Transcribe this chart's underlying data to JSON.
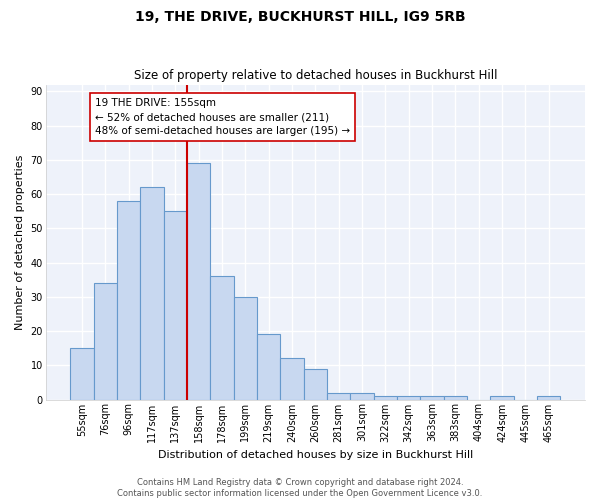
{
  "title": "19, THE DRIVE, BUCKHURST HILL, IG9 5RB",
  "subtitle": "Size of property relative to detached houses in Buckhurst Hill",
  "xlabel": "Distribution of detached houses by size in Buckhurst Hill",
  "ylabel": "Number of detached properties",
  "categories": [
    "55sqm",
    "76sqm",
    "96sqm",
    "117sqm",
    "137sqm",
    "158sqm",
    "178sqm",
    "199sqm",
    "219sqm",
    "240sqm",
    "260sqm",
    "281sqm",
    "301sqm",
    "322sqm",
    "342sqm",
    "363sqm",
    "383sqm",
    "404sqm",
    "424sqm",
    "445sqm",
    "465sqm"
  ],
  "values": [
    15,
    34,
    58,
    62,
    55,
    69,
    36,
    30,
    19,
    12,
    9,
    2,
    2,
    1,
    1,
    1,
    1,
    0,
    1,
    0,
    1
  ],
  "bar_color": "#c8d8f0",
  "bar_edge_color": "#6699cc",
  "property_line_color": "#cc0000",
  "annotation_text": "19 THE DRIVE: 155sqm\n← 52% of detached houses are smaller (211)\n48% of semi-detached houses are larger (195) →",
  "annotation_box_color": "#ffffff",
  "annotation_box_edge_color": "#cc0000",
  "ylim": [
    0,
    92
  ],
  "yticks": [
    0,
    10,
    20,
    30,
    40,
    50,
    60,
    70,
    80,
    90
  ],
  "footer_text": "Contains HM Land Registry data © Crown copyright and database right 2024.\nContains public sector information licensed under the Open Government Licence v3.0.",
  "background_color": "#ffffff",
  "plot_bg_color": "#eef2fa",
  "grid_color": "#ffffff",
  "title_fontsize": 10,
  "subtitle_fontsize": 8.5,
  "axis_label_fontsize": 8,
  "tick_fontsize": 7,
  "footer_fontsize": 6,
  "annotation_fontsize": 7.5,
  "property_line_index": 5
}
